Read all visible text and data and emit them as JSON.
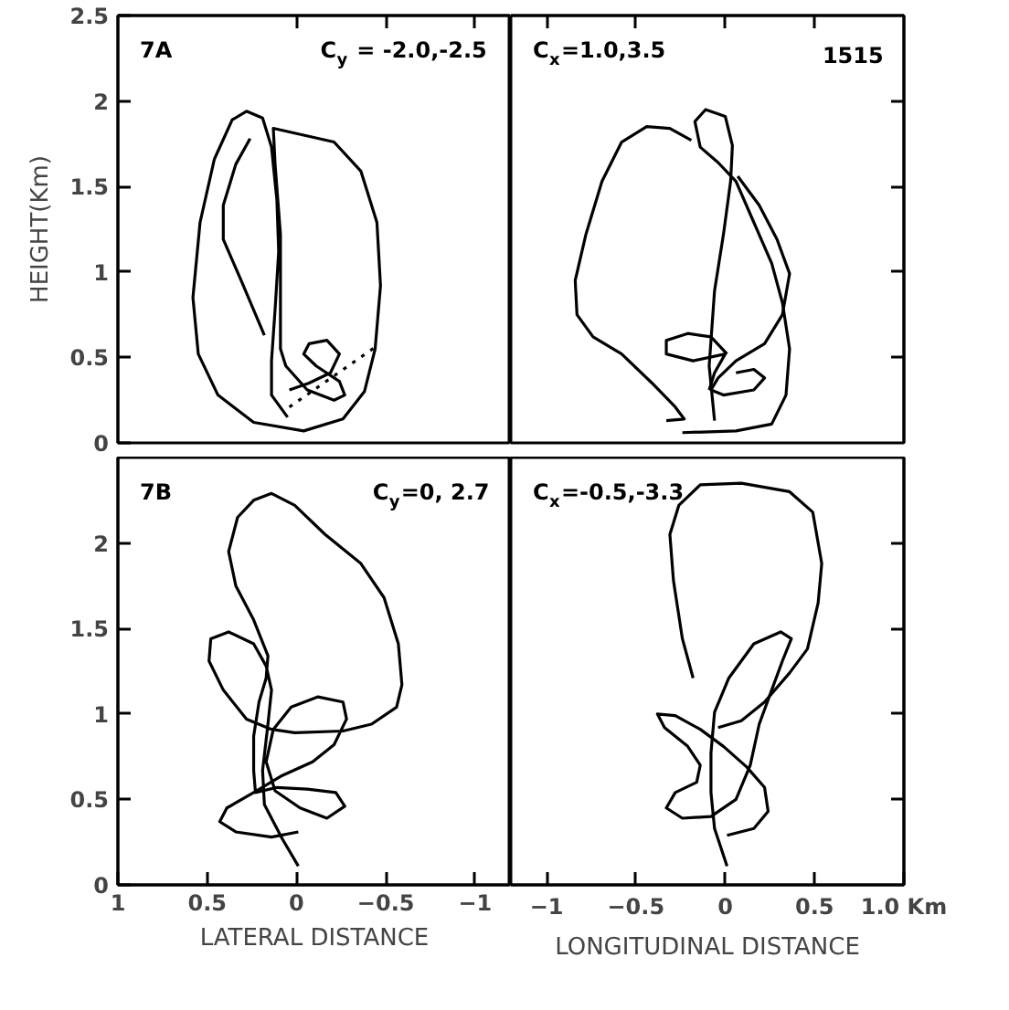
{
  "chart_data": [
    {
      "type": "line",
      "ylabel": "HEIGHT(Km)",
      "xlim": [
        1.0,
        -1.2
      ],
      "ylim": [
        0,
        2.5
      ],
      "xticks": [
        0,
        -0.5,
        -1.0
      ],
      "yticks": [
        0,
        0.5,
        1.0,
        1.5,
        2.0,
        2.5
      ],
      "tick_labels": "y",
      "annotations": [
        "7A",
        "C$_{y}$ = -2.0,-2.5"
      ],
      "series": [
        {
          "color": "#000000",
          "x": [
            0.05,
            0.14,
            0.14,
            0.12,
            0.1,
            0.11,
            0.14,
            0.19,
            0.28,
            0.36,
            0.46,
            0.54,
            0.58,
            0.55,
            0.44,
            0.24,
            -0.04,
            -0.26,
            -0.38,
            -0.44,
            -0.47,
            -0.45,
            -0.36,
            -0.21,
            0.13,
            0.12,
            0.09,
            0.09,
            0.09,
            0.06,
            -0.06,
            -0.21,
            -0.27,
            -0.24,
            -0.11,
            -0.04,
            -0.07,
            -0.17,
            -0.24,
            -0.19,
            -0.07,
            0.04
          ],
          "values": [
            0.15,
            0.28,
            0.48,
            0.78,
            1.12,
            1.42,
            1.73,
            1.9,
            1.94,
            1.89,
            1.66,
            1.29,
            0.85,
            0.52,
            0.28,
            0.12,
            0.07,
            0.14,
            0.3,
            0.55,
            0.92,
            1.29,
            1.59,
            1.76,
            1.84,
            1.63,
            1.22,
            0.82,
            0.55,
            0.45,
            0.31,
            0.25,
            0.28,
            0.36,
            0.45,
            0.52,
            0.58,
            0.6,
            0.52,
            0.41,
            0.35,
            0.31
          ]
        },
        {
          "color": "#000000",
          "x": [
            0.26,
            0.34,
            0.41,
            0.41,
            0.31,
            0.18
          ],
          "values": [
            1.78,
            1.63,
            1.39,
            1.19,
            0.95,
            0.63
          ]
        },
        {
          "color": "#000000",
          "line_style": "dotted",
          "x": [
            0.04,
            -0.44
          ],
          "values": [
            0.21,
            0.56
          ]
        }
      ]
    },
    {
      "type": "line",
      "xlim": [
        -1.2,
        1.0
      ],
      "ylim": [
        0,
        2.5
      ],
      "xticks": [
        -1.0,
        -0.5,
        0,
        0.5
      ],
      "yticks": [
        0.5,
        1.0,
        1.5,
        2.0
      ],
      "tick_labels": false,
      "annotations": [
        "C$_{x}$=1.0,3.5",
        "1515"
      ],
      "series": [
        {
          "color": "#000000",
          "x": [
            -0.06,
            -0.09,
            -0.06,
            -0.01,
            0.03,
            0.04,
            0.0,
            -0.11,
            -0.17,
            -0.14,
            -0.04,
            0.06,
            0.16,
            0.26,
            0.32,
            0.36,
            0.34,
            0.26,
            0.06,
            -0.24
          ],
          "values": [
            0.13,
            0.45,
            0.89,
            1.22,
            1.53,
            1.74,
            1.91,
            1.95,
            1.88,
            1.73,
            1.64,
            1.53,
            1.29,
            1.05,
            0.82,
            0.55,
            0.28,
            0.11,
            0.07,
            0.06
          ]
        },
        {
          "color": "#000000",
          "x": [
            -0.19,
            -0.31,
            -0.44,
            -0.58,
            -0.69,
            -0.78,
            -0.84,
            -0.83,
            -0.74,
            -0.58,
            -0.41,
            -0.28,
            -0.23,
            -0.33
          ],
          "values": [
            1.77,
            1.84,
            1.85,
            1.76,
            1.53,
            1.22,
            0.95,
            0.75,
            0.62,
            0.52,
            0.35,
            0.21,
            0.14,
            0.13
          ]
        },
        {
          "color": "#000000",
          "x": [
            0.07,
            0.19,
            0.29,
            0.36,
            0.32,
            0.22,
            0.06,
            -0.04,
            -0.08,
            -0.01,
            0.16,
            0.22,
            0.16,
            0.06
          ],
          "values": [
            1.56,
            1.39,
            1.19,
            0.99,
            0.75,
            0.58,
            0.48,
            0.38,
            0.31,
            0.28,
            0.31,
            0.38,
            0.43,
            0.41
          ]
        },
        {
          "color": "#000000",
          "x": [
            0.01,
            -0.08,
            -0.21,
            -0.33,
            -0.33,
            -0.18,
            0.0,
            -0.06,
            -0.09
          ],
          "values": [
            0.52,
            0.62,
            0.64,
            0.6,
            0.52,
            0.48,
            0.52,
            0.41,
            0.31
          ]
        }
      ]
    },
    {
      "type": "line",
      "xlabel": "LATERAL DISTANCE",
      "xlim": [
        1.0,
        -1.2
      ],
      "ylim": [
        0,
        2.5
      ],
      "xticks": [
        1.0,
        0.5,
        0,
        -0.5,
        -1.0
      ],
      "yticks": [
        0,
        0.5,
        1.0,
        1.5,
        2.0
      ],
      "annotations": [
        "7B",
        "C$_{y}$=0, 2.7"
      ],
      "series": [
        {
          "color": "#000000",
          "x": [
            -0.01,
            0.14,
            0.34,
            0.43,
            0.39,
            0.24,
            0.08,
            -0.09,
            -0.21,
            -0.28,
            -0.26,
            -0.12,
            0.03,
            0.13,
            0.17,
            0.12,
            -0.02,
            -0.17,
            -0.27,
            -0.22,
            -0.06,
            0.11,
            0.23,
            0.24,
            0.24,
            0.21,
            0.17,
            0.16,
            0.24,
            0.34,
            0.38,
            0.33,
            0.24,
            0.14,
            0.01,
            -0.16,
            -0.36,
            -0.49,
            -0.57,
            -0.59,
            -0.56,
            -0.42,
            -0.26,
            0.01,
            0.14,
            0.28,
            0.41,
            0.49,
            0.48,
            0.38,
            0.24,
            0.17,
            0.14,
            0.16,
            0.19,
            0.18,
            0.08,
            -0.01
          ],
          "values": [
            0.31,
            0.28,
            0.31,
            0.37,
            0.45,
            0.54,
            0.64,
            0.72,
            0.82,
            0.97,
            1.07,
            1.1,
            1.04,
            0.91,
            0.72,
            0.55,
            0.45,
            0.39,
            0.46,
            0.54,
            0.56,
            0.57,
            0.54,
            0.67,
            0.87,
            1.07,
            1.21,
            1.34,
            1.55,
            1.75,
            1.95,
            2.15,
            2.25,
            2.29,
            2.22,
            2.05,
            1.88,
            1.68,
            1.41,
            1.17,
            1.04,
            0.94,
            0.9,
            0.89,
            0.91,
            0.97,
            1.14,
            1.31,
            1.44,
            1.48,
            1.41,
            1.28,
            1.14,
            0.94,
            0.67,
            0.47,
            0.27,
            0.11
          ]
        }
      ]
    },
    {
      "type": "line",
      "xlabel": "LONGITUDINAL DISTANCE",
      "xlim": [
        -1.2,
        1.0
      ],
      "ylim": [
        0,
        2.5
      ],
      "xticks": [
        -1.0,
        -0.5,
        0,
        0.5,
        {
          "value": 1.0,
          "label": "1.0 Km"
        }
      ],
      "yticks": [
        0.5,
        1.0,
        1.5,
        2.0
      ],
      "tick_labels": "x",
      "annotations": [
        "C$_{x}$=-0.5,-3.3"
      ],
      "series": [
        {
          "color": "#000000",
          "x": [
            0.01,
            0.16,
            0.24,
            0.22,
            0.12,
            -0.01,
            -0.14,
            -0.28,
            -0.38,
            -0.34,
            -0.21,
            -0.14,
            -0.16,
            -0.28,
            -0.33,
            -0.24,
            -0.08,
            0.06,
            0.14,
            0.19,
            0.26,
            0.32,
            0.37,
            0.31,
            0.16,
            0.02,
            -0.06,
            -0.08,
            -0.08,
            -0.06,
            0.01
          ],
          "values": [
            0.29,
            0.33,
            0.43,
            0.57,
            0.69,
            0.81,
            0.91,
            0.99,
            1.0,
            0.92,
            0.81,
            0.7,
            0.6,
            0.54,
            0.45,
            0.39,
            0.4,
            0.5,
            0.7,
            0.94,
            1.14,
            1.31,
            1.44,
            1.48,
            1.41,
            1.21,
            1.01,
            0.77,
            0.54,
            0.33,
            0.11
          ]
        },
        {
          "color": "#000000",
          "x": [
            -0.18,
            -0.24,
            -0.29,
            -0.31,
            -0.26,
            -0.14,
            0.09,
            0.36,
            0.49,
            0.54,
            0.52,
            0.46,
            0.36,
            0.22,
            0.09,
            -0.04
          ],
          "values": [
            1.21,
            1.44,
            1.78,
            2.05,
            2.22,
            2.34,
            2.35,
            2.3,
            2.18,
            1.88,
            1.65,
            1.38,
            1.24,
            1.07,
            0.96,
            0.92
          ]
        }
      ]
    }
  ]
}
